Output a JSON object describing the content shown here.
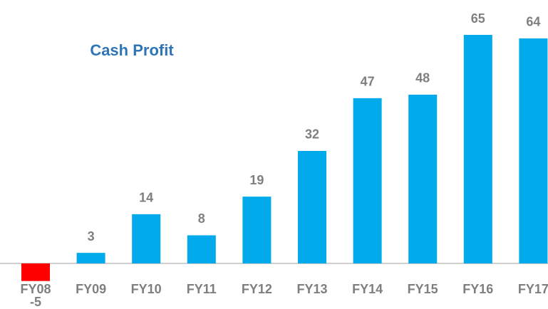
{
  "chart_data": {
    "type": "bar",
    "title": "Cash Profit",
    "categories": [
      "FY08",
      "FY09",
      "FY10",
      "FY11",
      "FY12",
      "FY13",
      "FY14",
      "FY15",
      "FY16",
      "FY17"
    ],
    "values": [
      -5,
      3,
      14,
      8,
      19,
      32,
      47,
      48,
      65,
      64
    ],
    "color": "#00aaeb",
    "negative_color": "#ff0000"
  }
}
